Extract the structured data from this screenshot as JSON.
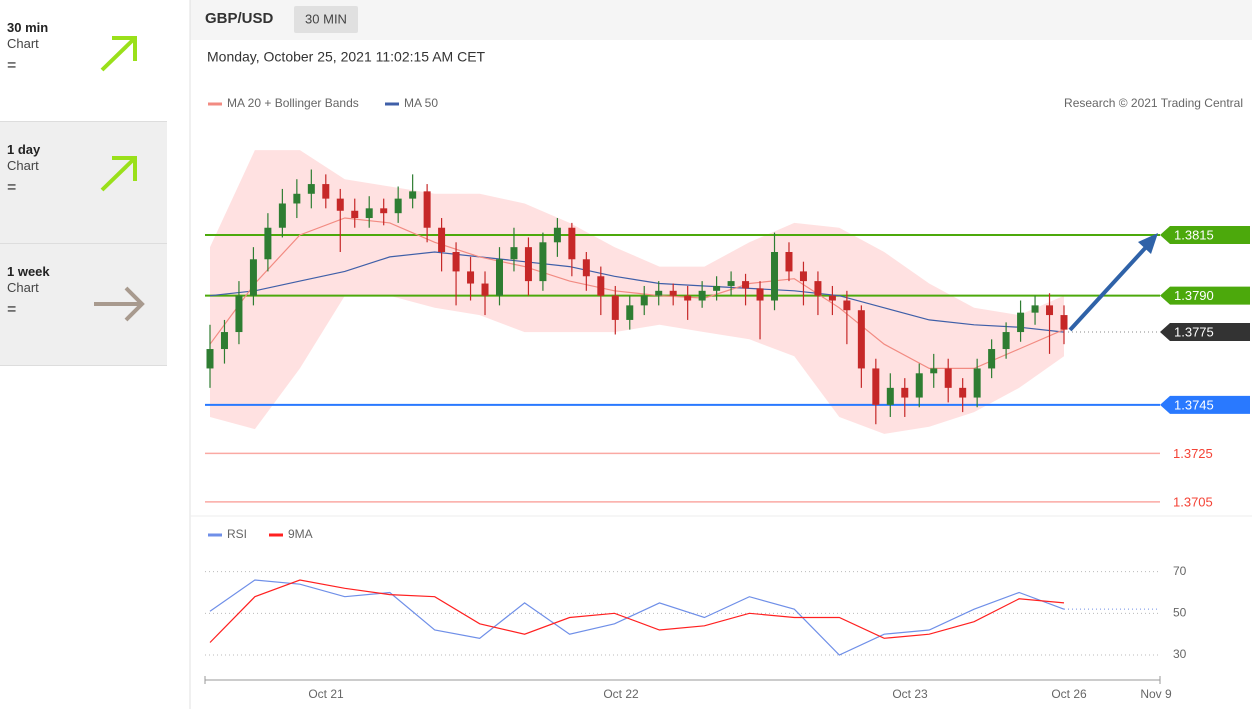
{
  "sidebar": [
    {
      "period": "30 min",
      "kind": "Chart",
      "sign": "="
    },
    {
      "period": "1 day",
      "kind": "Chart",
      "sign": "="
    },
    {
      "period": "1 week",
      "kind": "Chart",
      "sign": "="
    }
  ],
  "header": {
    "symbol": "GBP/USD",
    "interval": "30 MIN",
    "date": "Monday, October 25, 2021 11:02:15 AM CET"
  },
  "chart_data": {
    "type": "candlestick",
    "legend": [
      "MA 20 + Bollinger Bands",
      "MA 50"
    ],
    "credit": "Research © 2021 Trading Central",
    "ylim": [
      1.37,
      1.3862
    ],
    "candle_colors": {
      "up": "#2e7d32",
      "down": "#c62828"
    },
    "candles": [
      [
        1.376,
        1.3778,
        1.3752,
        1.3768
      ],
      [
        1.3768,
        1.378,
        1.3762,
        1.3775
      ],
      [
        1.3775,
        1.3796,
        1.377,
        1.379
      ],
      [
        1.379,
        1.381,
        1.3786,
        1.3805
      ],
      [
        1.3805,
        1.3824,
        1.38,
        1.3818
      ],
      [
        1.3818,
        1.3834,
        1.3814,
        1.3828
      ],
      [
        1.3828,
        1.3838,
        1.3822,
        1.3832
      ],
      [
        1.3832,
        1.3842,
        1.3826,
        1.3836
      ],
      [
        1.3836,
        1.384,
        1.3826,
        1.383
      ],
      [
        1.383,
        1.3834,
        1.3808,
        1.3825
      ],
      [
        1.3825,
        1.383,
        1.3818,
        1.3822
      ],
      [
        1.3822,
        1.3831,
        1.3818,
        1.3826
      ],
      [
        1.3826,
        1.383,
        1.3819,
        1.3824
      ],
      [
        1.3824,
        1.3835,
        1.382,
        1.383
      ],
      [
        1.383,
        1.384,
        1.3826,
        1.3833
      ],
      [
        1.3833,
        1.3836,
        1.3812,
        1.3818
      ],
      [
        1.3818,
        1.3822,
        1.38,
        1.3808
      ],
      [
        1.3808,
        1.3812,
        1.3786,
        1.38
      ],
      [
        1.38,
        1.3806,
        1.3788,
        1.3795
      ],
      [
        1.3795,
        1.38,
        1.3782,
        1.379
      ],
      [
        1.379,
        1.381,
        1.3786,
        1.3805
      ],
      [
        1.3805,
        1.3818,
        1.38,
        1.381
      ],
      [
        1.381,
        1.3814,
        1.379,
        1.3796
      ],
      [
        1.3796,
        1.3816,
        1.3792,
        1.3812
      ],
      [
        1.3812,
        1.3822,
        1.3806,
        1.3818
      ],
      [
        1.3818,
        1.382,
        1.3798,
        1.3805
      ],
      [
        1.3805,
        1.3808,
        1.3792,
        1.3798
      ],
      [
        1.3798,
        1.3802,
        1.3782,
        1.379
      ],
      [
        1.379,
        1.3794,
        1.3774,
        1.378
      ],
      [
        1.378,
        1.379,
        1.3776,
        1.3786
      ],
      [
        1.3786,
        1.3794,
        1.3782,
        1.379
      ],
      [
        1.379,
        1.3796,
        1.3786,
        1.3792
      ],
      [
        1.3792,
        1.3795,
        1.3786,
        1.379
      ],
      [
        1.379,
        1.3794,
        1.378,
        1.3788
      ],
      [
        1.3788,
        1.3796,
        1.3785,
        1.3792
      ],
      [
        1.3792,
        1.3798,
        1.3788,
        1.3794
      ],
      [
        1.3794,
        1.38,
        1.379,
        1.3796
      ],
      [
        1.3796,
        1.3799,
        1.3786,
        1.3793
      ],
      [
        1.3793,
        1.3796,
        1.3772,
        1.3788
      ],
      [
        1.3788,
        1.3816,
        1.3784,
        1.3808
      ],
      [
        1.3808,
        1.3812,
        1.3796,
        1.38
      ],
      [
        1.38,
        1.3804,
        1.3786,
        1.3796
      ],
      [
        1.3796,
        1.38,
        1.3782,
        1.379
      ],
      [
        1.379,
        1.3794,
        1.3782,
        1.3788
      ],
      [
        1.3788,
        1.3792,
        1.377,
        1.3784
      ],
      [
        1.3784,
        1.3786,
        1.3752,
        1.376
      ],
      [
        1.376,
        1.3764,
        1.3737,
        1.3745
      ],
      [
        1.3745,
        1.3758,
        1.374,
        1.3752
      ],
      [
        1.3752,
        1.3756,
        1.374,
        1.3748
      ],
      [
        1.3748,
        1.3762,
        1.3744,
        1.3758
      ],
      [
        1.3758,
        1.3766,
        1.3752,
        1.376
      ],
      [
        1.376,
        1.3764,
        1.3746,
        1.3752
      ],
      [
        1.3752,
        1.3756,
        1.3742,
        1.3748
      ],
      [
        1.3748,
        1.3764,
        1.3744,
        1.376
      ],
      [
        1.376,
        1.3772,
        1.3756,
        1.3768
      ],
      [
        1.3768,
        1.3779,
        1.3764,
        1.3775
      ],
      [
        1.3775,
        1.3788,
        1.3771,
        1.3783
      ],
      [
        1.3783,
        1.379,
        1.3778,
        1.3786
      ],
      [
        1.3786,
        1.3791,
        1.3766,
        1.3782
      ],
      [
        1.3782,
        1.3786,
        1.377,
        1.3776
      ]
    ],
    "band_upper": [
      1.381,
      1.385,
      1.385,
      1.3838,
      1.3835,
      1.3832,
      1.3832,
      1.3828,
      1.382,
      1.381,
      1.3802,
      1.3802,
      1.3812,
      1.382,
      1.3818,
      1.3808,
      1.3795,
      1.3785,
      1.3782,
      1.379
    ],
    "band_lower": [
      1.374,
      1.3735,
      1.376,
      1.379,
      1.379,
      1.3785,
      1.3782,
      1.3775,
      1.3775,
      1.3775,
      1.3778,
      1.3775,
      1.3772,
      1.3765,
      1.374,
      1.3733,
      1.3736,
      1.3742,
      1.3752,
      1.3765
    ],
    "band_color": "#ffd9d9",
    "ma20": {
      "color": "#f28b82",
      "values": [
        1.377,
        1.3795,
        1.3815,
        1.3822,
        1.382,
        1.3812,
        1.3806,
        1.3802,
        1.3796,
        1.3792,
        1.379,
        1.3789,
        1.3795,
        1.3797,
        1.3785,
        1.377,
        1.376,
        1.376,
        1.3768,
        1.3776
      ]
    },
    "ma50": {
      "color": "#3f5fa8",
      "values": [
        1.379,
        1.3792,
        1.3796,
        1.38,
        1.3806,
        1.3808,
        1.3806,
        1.3804,
        1.3802,
        1.3798,
        1.3795,
        1.3794,
        1.3793,
        1.3792,
        1.379,
        1.3785,
        1.378,
        1.3778,
        1.3777,
        1.3775
      ]
    },
    "levels": [
      {
        "value": 1.3815,
        "label": "1.3815",
        "color": "#4ca90c",
        "badge": true
      },
      {
        "value": 1.379,
        "label": "1.3790",
        "color": "#4ca90c",
        "badge": true
      },
      {
        "value": 1.3775,
        "label": "1.3775",
        "color": "#333333",
        "badge": true,
        "dotted": true
      },
      {
        "value": 1.3745,
        "label": "1.3745",
        "color": "#2979ff",
        "badge": true
      },
      {
        "value": 1.3725,
        "label": "1.3725",
        "color": "#f44336",
        "badge": false
      },
      {
        "value": 1.3705,
        "label": "1.3705",
        "color": "#f44336",
        "badge": false
      }
    ],
    "rsi": {
      "ylim": [
        18,
        78
      ],
      "yticks": [
        30,
        50,
        70
      ],
      "series": [
        {
          "name": "RSI",
          "color": "#6f8fe8",
          "values": [
            51,
            66,
            64,
            58,
            60,
            42,
            38,
            55,
            40,
            45,
            55,
            48,
            58,
            52,
            30,
            40,
            42,
            52,
            60,
            52
          ]
        },
        {
          "name": "9MA",
          "color": "#ff2020",
          "values": [
            36,
            58,
            66,
            62,
            59,
            58,
            45,
            40,
            48,
            50,
            42,
            44,
            50,
            48,
            48,
            38,
            40,
            46,
            57,
            55
          ]
        }
      ]
    },
    "xticks": [
      "Oct 21",
      "Oct 22",
      "Oct 23",
      "Oct 26",
      "Nov 9"
    ]
  }
}
